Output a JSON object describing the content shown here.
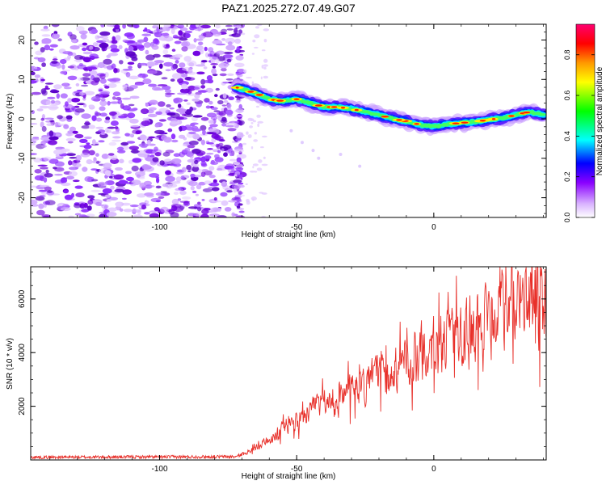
{
  "title": "PAZ1.2025.272.07.49.G07",
  "chart_data": [
    {
      "type": "heatmap",
      "xlabel": "Height of straight line (km)",
      "ylabel": "Frequency (Hz)",
      "xlim": [
        -147,
        41
      ],
      "ylim": [
        -25,
        24
      ],
      "xticks": [
        -100,
        -50,
        0
      ],
      "yticks": [
        -20,
        -10,
        0,
        10,
        20
      ],
      "colorbar": {
        "label": "Normalized spectral amplitude",
        "range": [
          0,
          0.95
        ],
        "ticks": [
          0,
          0.2,
          0.4,
          0.6,
          0.8
        ]
      },
      "noise_region": {
        "x_from": -147,
        "x_to": -70
      },
      "ridge": {
        "x": [
          -72,
          -65,
          -60,
          -55,
          -50,
          -45,
          -40,
          -35,
          -30,
          -25,
          -20,
          -15,
          -10,
          -5,
          0,
          5,
          10,
          15,
          20,
          25,
          30,
          35,
          40
        ],
        "freq": [
          8,
          6.5,
          5,
          4.5,
          5,
          4,
          3,
          3,
          2.5,
          1.8,
          1,
          0,
          -0.6,
          -1.5,
          -2,
          -1.4,
          -1,
          -0.8,
          -0.2,
          0.2,
          1,
          1.8,
          1
        ]
      }
    },
    {
      "type": "line",
      "xlabel": "Height of straight line (km)",
      "ylabel": "SNR (10 * v/v)",
      "xlim": [
        -147,
        41
      ],
      "ylim": [
        0,
        7200
      ],
      "xticks": [
        -100,
        -50,
        0
      ],
      "yticks": [
        2000,
        4000,
        6000
      ],
      "color": "#e8302a",
      "trend": {
        "x": [
          -147,
          -72,
          -68,
          -60,
          -50,
          -40,
          -30,
          -20,
          -10,
          0,
          10,
          20,
          30,
          41
        ],
        "y": [
          100,
          120,
          300,
          800,
          1500,
          2100,
          2500,
          3100,
          3700,
          4200,
          4800,
          5300,
          5900,
          6000
        ]
      },
      "noise_amplitude": {
        "before_-70": 60,
        "after_-70": 0.22
      }
    }
  ],
  "colorbar_gradient": [
    "#ffffff",
    "#cc99ff",
    "#7b00ff",
    "#0000ff",
    "#00ffff",
    "#00ff00",
    "#ffff00",
    "#ff9900",
    "#ff0000",
    "#ff0066"
  ]
}
